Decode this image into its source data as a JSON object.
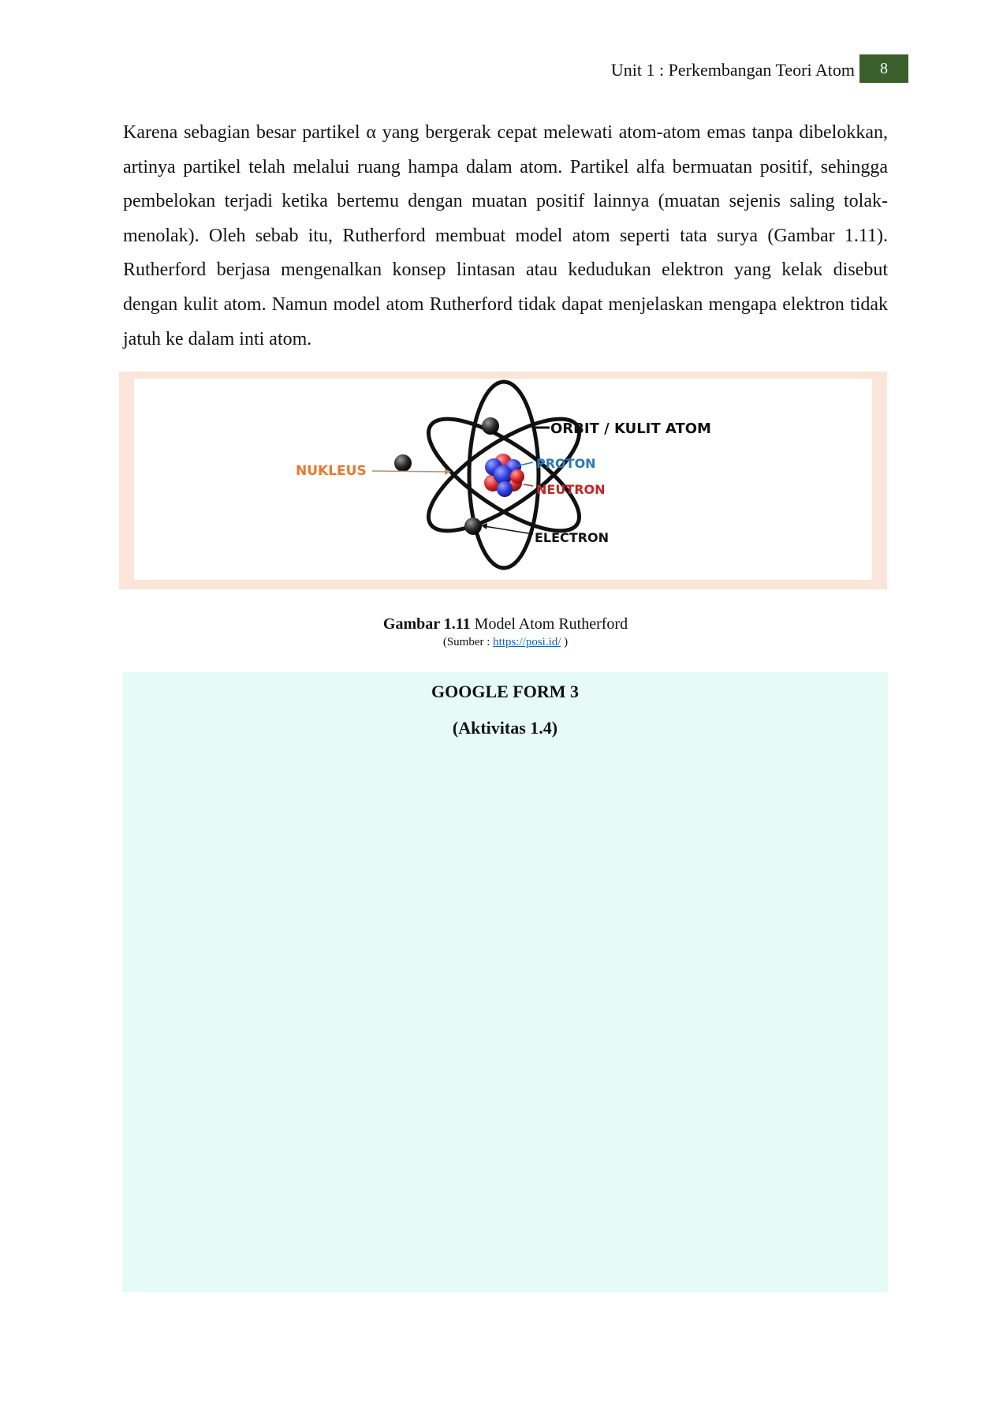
{
  "header": {
    "title": "Unit 1 : Perkembangan Teori Atom",
    "page_number": "8"
  },
  "body": {
    "paragraph": "Karena sebagian besar partikel α yang bergerak cepat melewati atom-atom emas tanpa dibelokkan, artinya partikel telah melalui ruang hampa dalam atom. Partikel alfa bermuatan positif, sehingga pembelokan terjadi ketika bertemu dengan muatan positif lainnya (muatan sejenis saling tolak-menolak). Oleh sebab itu, Rutherford membuat model atom seperti tata surya (Gambar 1.11). Rutherford berjasa mengenalkan konsep lintasan atau kedudukan elektron yang kelak disebut dengan kulit atom. Namun model atom Rutherford tidak dapat menjelaskan mengapa elektron tidak jatuh ke dalam inti atom."
  },
  "figure": {
    "labels": {
      "orbit": "ORBIT / KULIT ATOM",
      "nucleus": "NUKLEUS",
      "proton": "PROTON",
      "neutron": "NEUTRON",
      "electron": "ELECTRON"
    },
    "colors": {
      "frame": "#fbe4d8",
      "nucleus_label": "#e8792e",
      "proton_label": "#2a7ab8",
      "neutron_label": "#c3262a",
      "proton_ball": "#2f3ce0",
      "neutron_ball": "#e02a2a"
    },
    "caption_bold": "Gambar 1.11",
    "caption_text": " Model Atom Rutherford",
    "source_prefix": "(Sumber : ",
    "source_link": "https://posi.id/",
    "source_suffix": " )"
  },
  "google_form": {
    "title": "GOOGLE FORM 3",
    "subtitle": "(Aktivitas 1.4)",
    "background": "#e6fbf6"
  }
}
